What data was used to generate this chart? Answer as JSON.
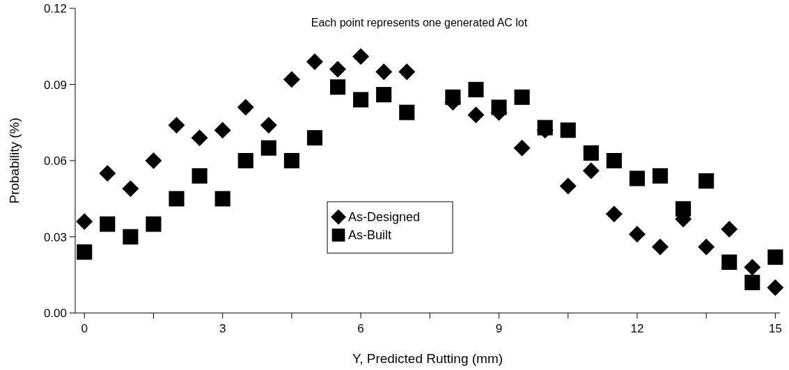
{
  "chart_data": {
    "type": "scatter",
    "xlabel": "Y, Predicted Rutting (mm)",
    "ylabel": "Probability (%)",
    "annotations": [
      "Each point represents one generated AC lot"
    ],
    "xlim": [
      -0.2,
      15.1
    ],
    "ylim": [
      0,
      0.12
    ],
    "xticks": [
      0,
      {
        "value": 1.5,
        "label": null
      },
      3,
      {
        "value": 4.5,
        "label": null
      },
      6,
      {
        "value": 7.5,
        "label": null
      },
      9,
      {
        "value": 10.5,
        "label": null
      },
      12,
      {
        "value": 13.5,
        "label": null
      },
      15
    ],
    "yticks": [
      {
        "value": 0,
        "label": "0.00"
      },
      {
        "value": 0.03,
        "label": "0.03"
      },
      {
        "value": 0.06,
        "label": "0.06"
      },
      {
        "value": 0.09,
        "label": "0.09"
      },
      {
        "value": 0.12,
        "label": "0.12"
      }
    ],
    "grid": false,
    "legend": "center",
    "series": [
      {
        "name": "As-Designed",
        "color": "#000000",
        "marker": "diamond",
        "x": [
          0,
          0.5,
          1,
          1.5,
          2,
          2.5,
          3,
          3.5,
          4,
          4.5,
          5,
          5.5,
          6,
          6.5,
          7,
          8,
          8.5,
          9,
          9.5,
          10,
          10.5,
          11,
          11.5,
          12,
          12.5,
          13,
          13.5,
          14,
          14.5,
          15
        ],
        "values": [
          0.036,
          0.055,
          0.049,
          0.06,
          0.074,
          0.069,
          0.072,
          0.081,
          0.074,
          0.092,
          0.099,
          0.096,
          0.101,
          0.095,
          0.095,
          0.083,
          0.078,
          0.079,
          0.065,
          0.072,
          0.05,
          0.056,
          0.039,
          0.031,
          0.026,
          0.037,
          0.026,
          0.033,
          0.018,
          0.01
        ]
      },
      {
        "name": "As-Built",
        "color": "#000000",
        "marker": "square",
        "x": [
          0,
          0.5,
          1,
          1.5,
          2,
          2.5,
          3,
          3.5,
          4,
          4.5,
          5,
          5.5,
          6,
          6.5,
          7,
          8,
          8.5,
          9,
          9.5,
          10,
          10.5,
          11,
          11.5,
          12,
          12.5,
          13,
          13.5,
          14,
          14.5,
          15
        ],
        "values": [
          0.024,
          0.035,
          0.03,
          0.035,
          0.045,
          0.054,
          0.045,
          0.06,
          0.065,
          0.06,
          0.069,
          0.089,
          0.084,
          0.086,
          0.079,
          0.085,
          0.088,
          0.081,
          0.085,
          0.073,
          0.072,
          0.063,
          0.06,
          0.053,
          0.054,
          0.041,
          0.052,
          0.02,
          0.012,
          0.022
        ]
      }
    ]
  }
}
